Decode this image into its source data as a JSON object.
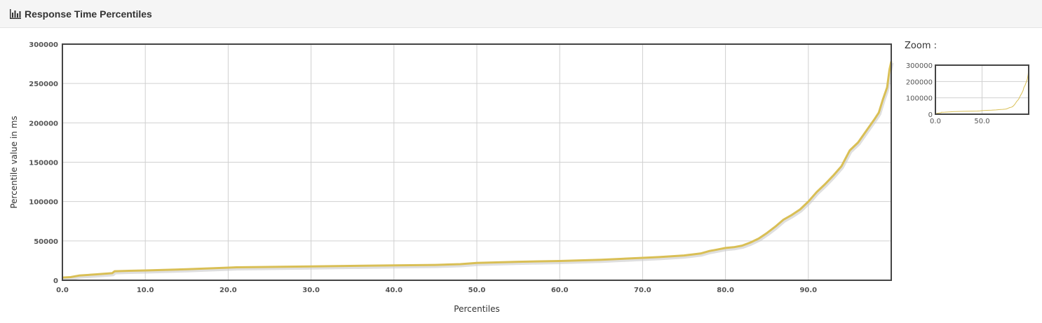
{
  "panel": {
    "title": "Response Time Percentiles",
    "icon": "bar-chart-icon"
  },
  "zoom": {
    "label": "Zoom :",
    "y_ticks": [
      "0",
      "100000",
      "200000",
      "300000"
    ],
    "x_ticks": [
      "0.0",
      "50.0"
    ]
  },
  "colors": {
    "series": "#d9bf55",
    "series_shadow": "#c9c9c9",
    "grid": "#d0d0d0",
    "frame": "#444444",
    "header_bg": "#f5f5f5"
  },
  "chart_data": {
    "type": "line",
    "title": "",
    "xlabel": "Percentiles",
    "ylabel": "Percentile value in ms",
    "xlim": [
      0,
      100
    ],
    "ylim": [
      0,
      300000
    ],
    "x_ticks": [
      "0.0",
      "10.0",
      "20.0",
      "30.0",
      "40.0",
      "50.0",
      "60.0",
      "70.0",
      "80.0",
      "90.0"
    ],
    "y_ticks": [
      "0",
      "50000",
      "100000",
      "150000",
      "200000",
      "250000",
      "300000"
    ],
    "grid": true,
    "legend": "none",
    "series": [
      {
        "x": [
          0,
          1,
          2,
          4,
          6,
          6.3,
          8,
          10,
          15,
          20,
          21,
          30,
          40,
          45,
          48,
          50,
          55,
          60,
          65,
          70,
          72,
          75,
          77,
          78,
          79,
          80,
          81,
          82,
          83,
          84,
          85,
          86,
          87,
          88,
          89,
          90,
          91,
          92,
          93,
          94,
          95,
          96,
          97,
          98,
          98.5,
          99,
          99.5,
          99.8,
          100
        ],
        "y": [
          3500,
          4000,
          6000,
          7500,
          9000,
          11500,
          12000,
          12500,
          14000,
          16000,
          16500,
          17500,
          19000,
          19500,
          20500,
          22000,
          23500,
          24500,
          26000,
          28500,
          29500,
          31500,
          34000,
          37000,
          39000,
          41000,
          42000,
          44000,
          48000,
          53000,
          60000,
          68000,
          77000,
          83000,
          90000,
          100000,
          112000,
          122000,
          133000,
          145000,
          165000,
          175000,
          190000,
          205000,
          213000,
          230000,
          245000,
          268000,
          278000
        ]
      }
    ]
  }
}
